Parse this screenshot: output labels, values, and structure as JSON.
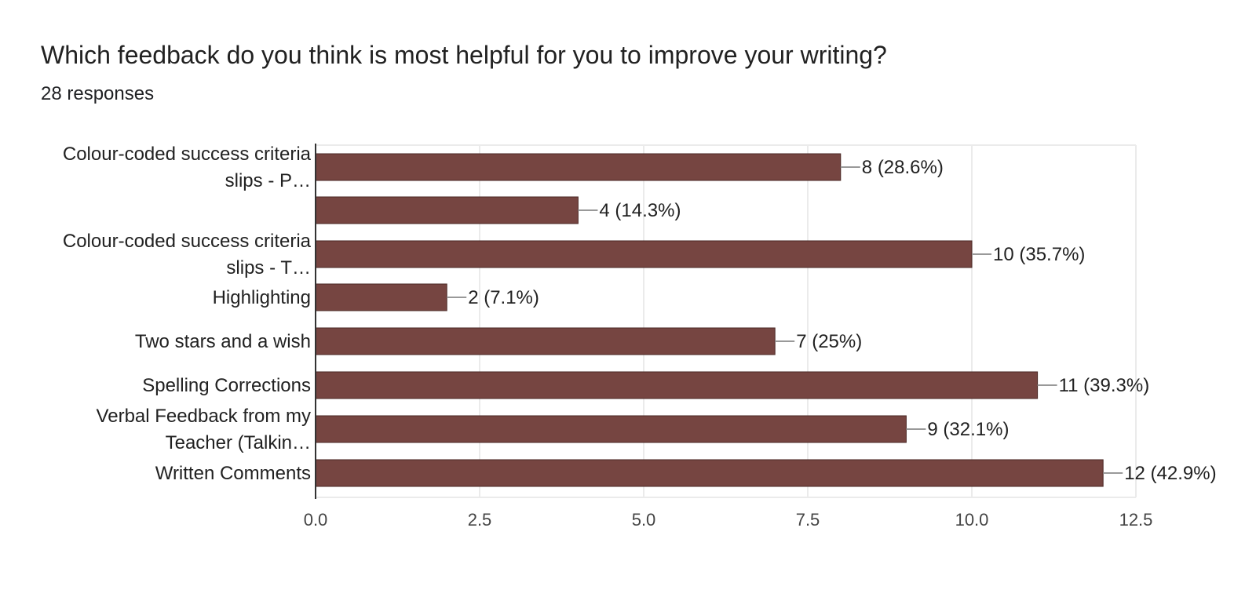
{
  "title": "Which feedback do you think is most helpful for you to improve your writing?",
  "subtitle": "28 responses",
  "colors": {
    "bar": "#764541",
    "grid": "#ebebeb",
    "axis": "#333333",
    "label_line": "#999999",
    "text": "#212121",
    "tick_text": "#444444"
  },
  "chart_data": {
    "type": "bar",
    "orientation": "horizontal",
    "categories": [
      [
        "Colour-coded success criteria",
        "slips - P…"
      ],
      [],
      [
        "Colour-coded success criteria",
        "slips - T…"
      ],
      [
        "Highlighting"
      ],
      [
        "Two stars and a wish"
      ],
      [
        "Spelling Corrections"
      ],
      [
        "Verbal Feedback from my",
        "Teacher (Talkin…"
      ],
      [
        "Written Comments"
      ]
    ],
    "values": [
      8,
      4,
      10,
      2,
      7,
      11,
      9,
      12
    ],
    "data_labels": [
      "8 (28.6%)",
      "4 (14.3%)",
      "10 (35.7%)",
      "2 (7.1%)",
      "7 (25%)",
      "11 (39.3%)",
      "9 (32.1%)",
      "12 (42.9%)"
    ],
    "xlim": [
      0,
      12.5
    ],
    "xticks": [
      "0.0",
      "2.5",
      "5.0",
      "7.5",
      "10.0",
      "12.5"
    ],
    "tick_values": [
      0,
      2.5,
      5,
      7.5,
      10,
      12.5
    ],
    "grid": true,
    "legend": "none",
    "title": "Which feedback do you think is most helpful for you to improve your writing?",
    "xlabel": "",
    "ylabel": ""
  }
}
